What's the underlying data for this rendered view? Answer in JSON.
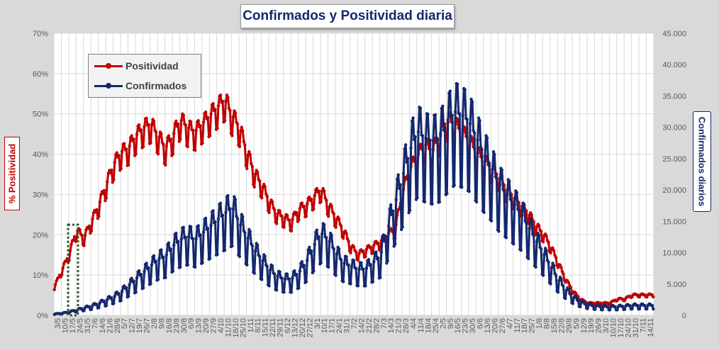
{
  "chart_data": {
    "type": "line",
    "title": "Confirmados  y Positividad  diaria",
    "ylabel_left": "% Positividad",
    "ylabel_right": "Confirmados diarios",
    "legend_position": "top-left",
    "grid": true,
    "y_left": {
      "range": [
        0,
        70
      ],
      "ticks": [
        "0%",
        "10%",
        "20%",
        "30%",
        "40%",
        "50%",
        "60%",
        "70%"
      ]
    },
    "y_right": {
      "range": [
        0,
        45000
      ],
      "ticks": [
        "0",
        "5.000",
        "10.000",
        "15.000",
        "20.000",
        "25.000",
        "30.000",
        "35.000",
        "40.000",
        "45.000"
      ]
    },
    "x_tick_labels": [
      "3/5",
      "10/5",
      "17/5",
      "24/5",
      "31/5",
      "7/6",
      "14/6",
      "21/6",
      "28/6",
      "5/7",
      "12/7",
      "19/7",
      "26/7",
      "2/8",
      "9/8",
      "16/8",
      "23/8",
      "30/8",
      "6/9",
      "13/9",
      "20/9",
      "27/9",
      "4/10",
      "11/10",
      "18/10",
      "25/10",
      "1/11",
      "8/11",
      "15/11",
      "22/11",
      "29/11",
      "6/12",
      "13/12",
      "20/12",
      "27/12",
      "3/1",
      "10/1",
      "17/1",
      "24/1",
      "31/1",
      "7/2",
      "14/2",
      "21/2",
      "28/2",
      "7/3",
      "14/3",
      "21/3",
      "28/3",
      "4/4",
      "11/4",
      "18/4",
      "25/4",
      "2/5",
      "9/5",
      "16/5",
      "23/5",
      "30/5",
      "6/6",
      "13/6",
      "20/6",
      "27/6",
      "4/7",
      "11/7",
      "18/7",
      "25/7",
      "1/8",
      "8/8",
      "15/8",
      "22/8",
      "29/8",
      "5/9",
      "12/9",
      "19/9",
      "26/9",
      "3/10",
      "10/10",
      "17/10",
      "24/10",
      "31/10",
      "7/11",
      "14/11"
    ],
    "series": [
      {
        "name": "Positividad",
        "color": "#c00000",
        "axis": "left",
        "unit": "%",
        "weekly_values": [
          7,
          11,
          15,
          21,
          19,
          23,
          27,
          32,
          37,
          40,
          41,
          44,
          46,
          47,
          44,
          41,
          44,
          48,
          46,
          45,
          47,
          49,
          51,
          53,
          49,
          46,
          40,
          35,
          32,
          28,
          25,
          24,
          23,
          26,
          27,
          29,
          31,
          27,
          24,
          21,
          17,
          15,
          16,
          17,
          18,
          20,
          21,
          30,
          36,
          39,
          42,
          40,
          44,
          48,
          47,
          45,
          43,
          40,
          38,
          36,
          34,
          31,
          29,
          27,
          25,
          22,
          20,
          17,
          13,
          9,
          6,
          4,
          3,
          3,
          3,
          3,
          4,
          4,
          5,
          5,
          5
        ]
      },
      {
        "name": "Confirmados",
        "color": "#14286e",
        "axis": "right",
        "unit": "casos",
        "weekly_values": [
          200,
          300,
          500,
          800,
          1100,
          1400,
          1800,
          2300,
          2800,
          3500,
          4500,
          5500,
          6500,
          7500,
          8500,
          9000,
          10500,
          11500,
          12000,
          11500,
          12500,
          13500,
          14500,
          15500,
          16500,
          14000,
          12000,
          10000,
          8500,
          7000,
          6000,
          5500,
          5500,
          6500,
          8000,
          10500,
          12500,
          11500,
          9500,
          8000,
          7500,
          7000,
          7000,
          8000,
          9000,
          13000,
          17000,
          21000,
          25000,
          28000,
          27000,
          26500,
          27000,
          29000,
          31000,
          30500,
          29500,
          27000,
          24500,
          22500,
          20000,
          18500,
          17000,
          15500,
          13500,
          11500,
          9500,
          7500,
          5500,
          4000,
          2800,
          2000,
          1600,
          1400,
          1300,
          1300,
          1300,
          1400,
          1500,
          1500,
          1500
        ]
      }
    ]
  },
  "legend": {
    "items": [
      {
        "label": "Positividad",
        "color": "#c00000"
      },
      {
        "label": "Confirmados",
        "color": "#14286e"
      }
    ]
  }
}
